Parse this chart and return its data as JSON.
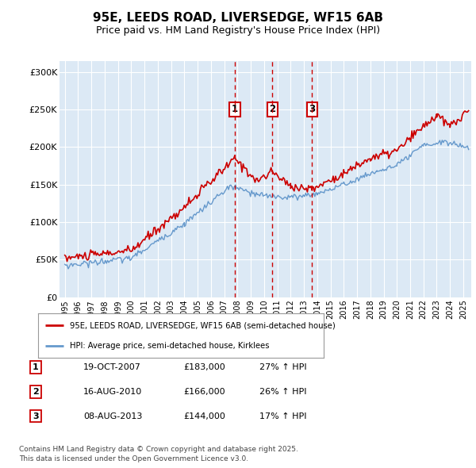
{
  "title": "95E, LEEDS ROAD, LIVERSEDGE, WF15 6AB",
  "subtitle": "Price paid vs. HM Land Registry's House Price Index (HPI)",
  "ylabel_ticks": [
    "£0",
    "£50K",
    "£100K",
    "£150K",
    "£200K",
    "£250K",
    "£300K"
  ],
  "ytick_values": [
    0,
    50000,
    100000,
    150000,
    200000,
    250000,
    300000
  ],
  "ylim": [
    0,
    315000
  ],
  "xlim_start": 1994.6,
  "xlim_end": 2025.6,
  "background_color": "#dce9f5",
  "grid_color": "#ffffff",
  "red_line_color": "#cc0000",
  "blue_line_color": "#6699cc",
  "dashed_line_color": "#cc0000",
  "transactions": [
    {
      "label": "1",
      "date": 2007.8,
      "price": 183000,
      "hpi_pct": "27% ↑ HPI",
      "date_str": "19-OCT-2007",
      "price_str": "£183,000"
    },
    {
      "label": "2",
      "date": 2010.62,
      "price": 166000,
      "hpi_pct": "26% ↑ HPI",
      "date_str": "16-AUG-2010",
      "price_str": "£166,000"
    },
    {
      "label": "3",
      "date": 2013.62,
      "price": 144000,
      "hpi_pct": "17% ↑ HPI",
      "date_str": "08-AUG-2013",
      "price_str": "£144,000"
    }
  ],
  "legend_entry1": "95E, LEEDS ROAD, LIVERSEDGE, WF15 6AB (semi-detached house)",
  "legend_entry2": "HPI: Average price, semi-detached house, Kirklees",
  "footer": "Contains HM Land Registry data © Crown copyright and database right 2025.\nThis data is licensed under the Open Government Licence v3.0.",
  "xticks": [
    1995,
    1996,
    1997,
    1998,
    1999,
    2000,
    2001,
    2002,
    2003,
    2004,
    2005,
    2006,
    2007,
    2008,
    2009,
    2010,
    2011,
    2012,
    2013,
    2014,
    2015,
    2016,
    2017,
    2018,
    2019,
    2020,
    2021,
    2022,
    2023,
    2024,
    2025
  ]
}
